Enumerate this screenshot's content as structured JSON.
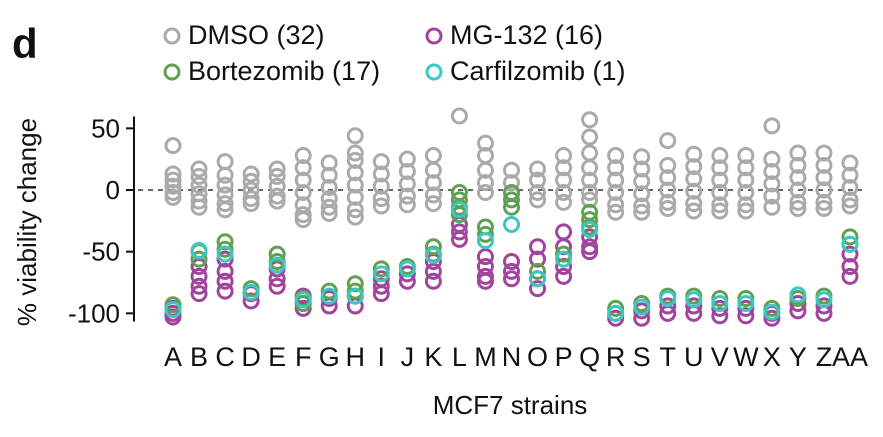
{
  "panel_label": "d",
  "chart_data": {
    "type": "scatter",
    "xlabel": "MCF7 strains",
    "ylabel": "% viability change",
    "ylim": [
      -105,
      58
    ],
    "yticks": [
      50,
      0,
      -50,
      -100
    ],
    "reference_line": 0,
    "legend": [
      {
        "label": "DMSO (32)",
        "color": "#aaaaaa"
      },
      {
        "label": "MG-132 (16)",
        "color": "#a0449d"
      },
      {
        "label": "Bortezomib (17)",
        "color": "#5fa150"
      },
      {
        "label": "Carfilzomib (1)",
        "color": "#3cc7c4"
      }
    ],
    "categories": [
      "A",
      "B",
      "C",
      "D",
      "E",
      "F",
      "G",
      "H",
      "I",
      "J",
      "K",
      "L",
      "M",
      "N",
      "O",
      "P",
      "Q",
      "R",
      "S",
      "T",
      "U",
      "V",
      "W",
      "X",
      "Y",
      "Z",
      "AA"
    ],
    "series": [
      {
        "name": "DMSO (32)",
        "color": "#aaaaaa",
        "points": [
          [
            0,
            13
          ],
          [
            0,
            8
          ],
          [
            0,
            3
          ],
          [
            0,
            -2
          ],
          [
            0,
            -6
          ],
          [
            0,
            36
          ],
          [
            1,
            17
          ],
          [
            1,
            11
          ],
          [
            1,
            4
          ],
          [
            1,
            -3
          ],
          [
            1,
            -9
          ],
          [
            1,
            -14
          ],
          [
            2,
            23
          ],
          [
            2,
            12
          ],
          [
            2,
            4
          ],
          [
            2,
            -4
          ],
          [
            2,
            -11
          ],
          [
            2,
            -16
          ],
          [
            3,
            13
          ],
          [
            3,
            7
          ],
          [
            3,
            0
          ],
          [
            3,
            -7
          ],
          [
            3,
            -11
          ],
          [
            4,
            17
          ],
          [
            4,
            11
          ],
          [
            4,
            3
          ],
          [
            4,
            -5
          ],
          [
            4,
            -9
          ],
          [
            5,
            28
          ],
          [
            5,
            18
          ],
          [
            5,
            8
          ],
          [
            5,
            -2
          ],
          [
            5,
            -12
          ],
          [
            5,
            -20
          ],
          [
            5,
            -24
          ],
          [
            6,
            22
          ],
          [
            6,
            12
          ],
          [
            6,
            2
          ],
          [
            6,
            -7
          ],
          [
            6,
            -14
          ],
          [
            6,
            -19
          ],
          [
            7,
            44
          ],
          [
            7,
            30
          ],
          [
            7,
            24
          ],
          [
            7,
            14
          ],
          [
            7,
            4
          ],
          [
            7,
            -6
          ],
          [
            7,
            -16
          ],
          [
            7,
            -22
          ],
          [
            8,
            23
          ],
          [
            8,
            13
          ],
          [
            8,
            3
          ],
          [
            8,
            -7
          ],
          [
            8,
            -13
          ],
          [
            9,
            25
          ],
          [
            9,
            15
          ],
          [
            9,
            5
          ],
          [
            9,
            -5
          ],
          [
            9,
            -12
          ],
          [
            10,
            28
          ],
          [
            10,
            16
          ],
          [
            10,
            6
          ],
          [
            10,
            -4
          ],
          [
            10,
            -11
          ],
          [
            11,
            60
          ],
          [
            12,
            38
          ],
          [
            12,
            28
          ],
          [
            12,
            16
          ],
          [
            12,
            6
          ],
          [
            12,
            -2
          ],
          [
            13,
            16
          ],
          [
            13,
            6
          ],
          [
            13,
            -3
          ],
          [
            14,
            17
          ],
          [
            14,
            8
          ],
          [
            14,
            -2
          ],
          [
            14,
            -8
          ],
          [
            15,
            28
          ],
          [
            15,
            18
          ],
          [
            15,
            8
          ],
          [
            15,
            -2
          ],
          [
            15,
            -10
          ],
          [
            16,
            57
          ],
          [
            16,
            43
          ],
          [
            16,
            30
          ],
          [
            16,
            18
          ],
          [
            16,
            8
          ],
          [
            16,
            -2
          ],
          [
            16,
            -8
          ],
          [
            17,
            28
          ],
          [
            17,
            18
          ],
          [
            17,
            8
          ],
          [
            17,
            -2
          ],
          [
            17,
            -12
          ],
          [
            17,
            -18
          ],
          [
            18,
            27
          ],
          [
            18,
            17
          ],
          [
            18,
            7
          ],
          [
            18,
            -3
          ],
          [
            18,
            -13
          ],
          [
            18,
            -18
          ],
          [
            19,
            40
          ],
          [
            19,
            20
          ],
          [
            19,
            10
          ],
          [
            19,
            0
          ],
          [
            19,
            -10
          ],
          [
            19,
            -15
          ],
          [
            20,
            29
          ],
          [
            20,
            19
          ],
          [
            20,
            9
          ],
          [
            20,
            -1
          ],
          [
            20,
            -11
          ],
          [
            20,
            -17
          ],
          [
            21,
            28
          ],
          [
            21,
            18
          ],
          [
            21,
            8
          ],
          [
            21,
            -2
          ],
          [
            21,
            -12
          ],
          [
            21,
            -17
          ],
          [
            22,
            28
          ],
          [
            22,
            18
          ],
          [
            22,
            8
          ],
          [
            22,
            -2
          ],
          [
            22,
            -12
          ],
          [
            22,
            -17
          ],
          [
            23,
            52
          ],
          [
            23,
            25
          ],
          [
            23,
            15
          ],
          [
            23,
            5
          ],
          [
            23,
            -5
          ],
          [
            23,
            -14
          ],
          [
            24,
            30
          ],
          [
            24,
            20
          ],
          [
            24,
            10
          ],
          [
            24,
            0
          ],
          [
            24,
            -10
          ],
          [
            24,
            -15
          ],
          [
            25,
            30
          ],
          [
            25,
            20
          ],
          [
            25,
            10
          ],
          [
            25,
            0
          ],
          [
            25,
            -10
          ],
          [
            25,
            -15
          ],
          [
            26,
            22
          ],
          [
            26,
            12
          ],
          [
            26,
            2
          ],
          [
            26,
            -8
          ],
          [
            26,
            -13
          ]
        ]
      },
      {
        "name": "MG-132 (16)",
        "color": "#a0449d",
        "points": [
          [
            0,
            -96
          ],
          [
            0,
            -100
          ],
          [
            0,
            -103
          ],
          [
            1,
            -62
          ],
          [
            1,
            -70
          ],
          [
            1,
            -78
          ],
          [
            1,
            -84
          ],
          [
            2,
            -56
          ],
          [
            2,
            -66
          ],
          [
            2,
            -74
          ],
          [
            2,
            -82
          ],
          [
            3,
            -84
          ],
          [
            3,
            -90
          ],
          [
            4,
            -64
          ],
          [
            4,
            -72
          ],
          [
            4,
            -78
          ],
          [
            5,
            -86
          ],
          [
            5,
            -92
          ],
          [
            5,
            -96
          ],
          [
            6,
            -88
          ],
          [
            6,
            -94
          ],
          [
            7,
            -86
          ],
          [
            7,
            -94
          ],
          [
            8,
            -72
          ],
          [
            8,
            -78
          ],
          [
            8,
            -84
          ],
          [
            9,
            -68
          ],
          [
            9,
            -74
          ],
          [
            10,
            -58
          ],
          [
            10,
            -66
          ],
          [
            10,
            -74
          ],
          [
            11,
            -28
          ],
          [
            11,
            -34
          ],
          [
            11,
            -40
          ],
          [
            12,
            -54
          ],
          [
            12,
            -62
          ],
          [
            12,
            -70
          ],
          [
            12,
            -74
          ],
          [
            13,
            -58
          ],
          [
            13,
            -66
          ],
          [
            13,
            -72
          ],
          [
            14,
            -46
          ],
          [
            14,
            -56
          ],
          [
            14,
            -72
          ],
          [
            14,
            -80
          ],
          [
            15,
            -34
          ],
          [
            15,
            -46
          ],
          [
            15,
            -62
          ],
          [
            15,
            -70
          ],
          [
            16,
            -38
          ],
          [
            16,
            -46
          ],
          [
            16,
            -50
          ],
          [
            17,
            -100
          ],
          [
            17,
            -104
          ],
          [
            18,
            -98
          ],
          [
            18,
            -104
          ],
          [
            19,
            -94
          ],
          [
            19,
            -100
          ],
          [
            20,
            -94
          ],
          [
            20,
            -100
          ],
          [
            21,
            -96
          ],
          [
            21,
            -102
          ],
          [
            22,
            -96
          ],
          [
            22,
            -102
          ],
          [
            23,
            -100
          ],
          [
            23,
            -104
          ],
          [
            24,
            -92
          ],
          [
            24,
            -98
          ],
          [
            25,
            -94
          ],
          [
            25,
            -100
          ],
          [
            26,
            -52
          ],
          [
            26,
            -62
          ],
          [
            26,
            -70
          ]
        ]
      },
      {
        "name": "Bortezomib (17)",
        "color": "#5fa150",
        "points": [
          [
            0,
            -93
          ],
          [
            1,
            -50
          ],
          [
            1,
            -56
          ],
          [
            2,
            -42
          ],
          [
            2,
            -48
          ],
          [
            3,
            -80
          ],
          [
            4,
            -52
          ],
          [
            4,
            -58
          ],
          [
            5,
            -88
          ],
          [
            5,
            -92
          ],
          [
            6,
            -82
          ],
          [
            7,
            -76
          ],
          [
            7,
            -82
          ],
          [
            8,
            -64
          ],
          [
            9,
            -62
          ],
          [
            10,
            -46
          ],
          [
            10,
            -52
          ],
          [
            11,
            -2
          ],
          [
            11,
            -8
          ],
          [
            11,
            -14
          ],
          [
            11,
            -20
          ],
          [
            12,
            -30
          ],
          [
            12,
            -36
          ],
          [
            13,
            -2
          ],
          [
            13,
            -8
          ],
          [
            13,
            -14
          ],
          [
            14,
            -66
          ],
          [
            15,
            -52
          ],
          [
            16,
            -18
          ],
          [
            16,
            -24
          ],
          [
            16,
            -30
          ],
          [
            17,
            -96
          ],
          [
            18,
            -92
          ],
          [
            19,
            -86
          ],
          [
            20,
            -86
          ],
          [
            21,
            -88
          ],
          [
            22,
            -88
          ],
          [
            23,
            -96
          ],
          [
            24,
            -88
          ],
          [
            25,
            -86
          ],
          [
            26,
            -38
          ],
          [
            26,
            -44
          ]
        ]
      },
      {
        "name": "Carfilzomib (1)",
        "color": "#3cc7c4",
        "points": [
          [
            0,
            -97
          ],
          [
            1,
            -49
          ],
          [
            2,
            -52
          ],
          [
            3,
            -83
          ],
          [
            4,
            -61
          ],
          [
            5,
            -89
          ],
          [
            6,
            -86
          ],
          [
            7,
            -86
          ],
          [
            8,
            -68
          ],
          [
            9,
            -64
          ],
          [
            10,
            -53
          ],
          [
            11,
            -16
          ],
          [
            12,
            -41
          ],
          [
            13,
            -28
          ],
          [
            14,
            -72
          ],
          [
            15,
            -56
          ],
          [
            16,
            -32
          ],
          [
            17,
            -100
          ],
          [
            18,
            -95
          ],
          [
            19,
            -88
          ],
          [
            20,
            -89
          ],
          [
            21,
            -92
          ],
          [
            22,
            -92
          ],
          [
            23,
            -99
          ],
          [
            24,
            -85
          ],
          [
            25,
            -89
          ],
          [
            26,
            -44
          ]
        ]
      }
    ]
  }
}
